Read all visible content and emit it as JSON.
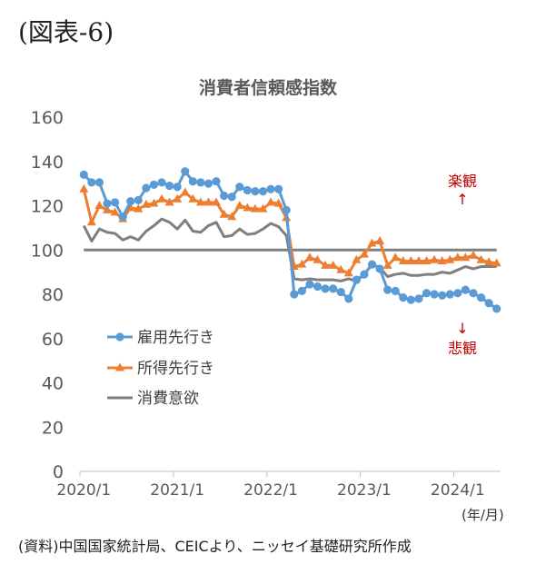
{
  "figure_label": "(図表-6)",
  "source": "(資料)中国国家統計局、CEICより、ニッセイ基礎研究所作成",
  "chart_data": {
    "type": "line",
    "title": "消費者信頼感指数",
    "xlabel": "(年/月)",
    "ylabel": "",
    "ylim": [
      0,
      160
    ],
    "yticks": [
      0,
      20,
      40,
      60,
      80,
      100,
      120,
      140,
      160
    ],
    "x_tick_labels": [
      "2020/1",
      "2021/1",
      "2022/1",
      "2023/1",
      "2024/1"
    ],
    "x_tick_positions": [
      0,
      12,
      24,
      36,
      48
    ],
    "grid": false,
    "legend": "bottom-left",
    "reference_line": 100,
    "annotations": {
      "upper": "楽観",
      "upper_arrow": "↑",
      "lower_arrow": "↓",
      "lower": "悲観"
    },
    "colors": {
      "employment": "#5b9bd5",
      "income": "#ed7d31",
      "consumption": "#7f7f7f",
      "reference": "#7f7f7f",
      "annotation": "#c00000"
    },
    "series": [
      {
        "name": "雇用先行き",
        "marker": "circle",
        "color": "#5b9bd5",
        "values": [
          134,
          130.5,
          130.5,
          121,
          121.5,
          115,
          122,
          122.5,
          128,
          129.5,
          130.5,
          129,
          128.5,
          135.5,
          131,
          130.5,
          130,
          131,
          124.5,
          124,
          128.5,
          127,
          126.5,
          126.5,
          127.5,
          127.5,
          118,
          80,
          81.5,
          84.5,
          83.5,
          82.5,
          82.5,
          81,
          78,
          86.5,
          89,
          93.5,
          91.5,
          82,
          81.5,
          78.5,
          77.5,
          78,
          80.5,
          80,
          79.5,
          80,
          80.5,
          82,
          80.5,
          78.5,
          76,
          73.5
        ]
      },
      {
        "name": "所得先行き",
        "marker": "triangle",
        "color": "#ed7d31",
        "values": [
          127.5,
          112.5,
          120,
          118,
          117,
          114,
          119,
          118.5,
          120.5,
          121,
          123,
          121.5,
          123,
          126,
          123,
          121.5,
          121.5,
          121.5,
          116,
          115,
          120,
          119,
          118.5,
          118.5,
          121.5,
          121,
          114.5,
          92.5,
          93.5,
          96.5,
          95.5,
          93,
          93,
          91,
          89.5,
          95.5,
          98,
          103,
          104,
          93,
          96.5,
          95,
          95,
          95,
          95,
          95.5,
          95,
          95.5,
          96.5,
          96.5,
          97.5,
          95.5,
          94.5,
          94
        ]
      },
      {
        "name": "消費意欲",
        "marker": "none",
        "color": "#7f7f7f",
        "values": [
          111,
          104,
          109.5,
          108,
          107.5,
          104.5,
          106,
          104.5,
          108.5,
          111,
          114,
          112.5,
          109.5,
          113.5,
          108.5,
          108,
          111,
          112.5,
          106,
          106.5,
          109.5,
          107,
          107.5,
          109.5,
          112,
          110.5,
          106.5,
          87,
          86.5,
          87,
          86.5,
          86.5,
          86.5,
          86,
          87,
          86,
          89,
          93.5,
          92,
          88,
          89,
          89.5,
          88.5,
          88.5,
          89,
          89,
          90,
          89.5,
          91,
          92.5,
          91.5,
          92.5,
          92.5,
          92.5
        ]
      }
    ]
  }
}
